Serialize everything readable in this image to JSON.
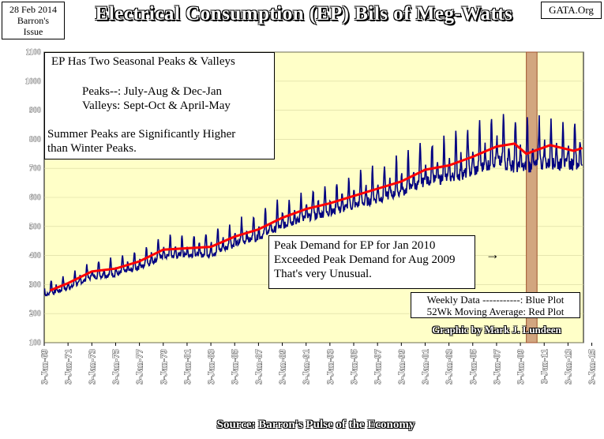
{
  "header": {
    "date_line1": "28 Feb 2014",
    "date_line2": "Barron's",
    "date_line3": "Issue",
    "site": "GATA.Org"
  },
  "colors": {
    "plot_background": "#ffffc8",
    "weekly_line": "#000080",
    "moving_average": "#ff0000",
    "highlight_fill": "#d2a67f",
    "highlight_border": "#a0522d"
  },
  "annotations": {
    "seasonal_title": "EP Has Two Seasonal Peaks & Valleys",
    "peaks": "Peaks--:  July-Aug & Dec-Jan",
    "valleys": "Valleys:  Sept-Oct & April-May",
    "summer_line1": "Summer Peaks are Significantly  Higher",
    "summer_line2": "than Winter Peaks.",
    "peak_line1": "Peak Demand for EP for Jan 2010",
    "peak_line2": "Exceeded Peak Demand for Aug 2009",
    "peak_line3": "That's very Unusual.",
    "arrow": "→",
    "legend_line1": "Weekly Data -----------: Blue Plot",
    "legend_line2": "52Wk Moving Average: Red Plot",
    "credit": "Graphic by Mark J. Lundeen"
  },
  "chart_data": {
    "type": "line",
    "title": "Electrical Consumption (EP) Bils of Meg-Watts",
    "xlabel": "Source: Barron's Pulse of the Economy",
    "ylabel": "",
    "ylim": [
      100,
      1100
    ],
    "yticks": [
      100,
      200,
      300,
      400,
      500,
      600,
      700,
      800,
      900,
      1000,
      1100
    ],
    "xlim": [
      1969.0,
      2014.3
    ],
    "xticks": [
      {
        "year": 1969,
        "label": "3-Jan-69"
      },
      {
        "year": 1971,
        "label": "3-Jan-71"
      },
      {
        "year": 1973,
        "label": "3-Jan-73"
      },
      {
        "year": 1975,
        "label": "3-Jan-75"
      },
      {
        "year": 1977,
        "label": "3-Jan-77"
      },
      {
        "year": 1979,
        "label": "3-Jan-79"
      },
      {
        "year": 1981,
        "label": "3-Jan-81"
      },
      {
        "year": 1983,
        "label": "3-Jan-83"
      },
      {
        "year": 1985,
        "label": "3-Jan-85"
      },
      {
        "year": 1987,
        "label": "3-Jan-87"
      },
      {
        "year": 1989,
        "label": "3-Jan-89"
      },
      {
        "year": 1991,
        "label": "3-Jan-91"
      },
      {
        "year": 1993,
        "label": "3-Jan-93"
      },
      {
        "year": 1995,
        "label": "3-Jan-95"
      },
      {
        "year": 1997,
        "label": "3-Jan-97"
      },
      {
        "year": 1999,
        "label": "3-Jan-99"
      },
      {
        "year": 2001,
        "label": "3-Jan-01"
      },
      {
        "year": 2003,
        "label": "3-Jan-03"
      },
      {
        "year": 2005,
        "label": "3-Jan-05"
      },
      {
        "year": 2007,
        "label": "3-Jan-07"
      },
      {
        "year": 2009,
        "label": "3-Jan-09"
      },
      {
        "year": 2011,
        "label": "3-Jan-11"
      },
      {
        "year": 2013,
        "label": "3-Jan-13"
      },
      {
        "year": 2015,
        "label": "3-Jan-15"
      }
    ],
    "highlight_range": [
      2009.5,
      2010.4
    ],
    "series": [
      {
        "name": "Weekly Data (Blue Plot)",
        "style": "seasonal",
        "trend_x": [
          1969,
          1971,
          1973,
          1975,
          1977,
          1979,
          1981,
          1983,
          1985,
          1987,
          1989,
          1991,
          1993,
          1995,
          1997,
          1999,
          2001,
          2003,
          2005,
          2007,
          2009,
          2011,
          2013,
          2014.2
        ],
        "trend_y": [
          275,
          300,
          340,
          350,
          375,
          415,
          420,
          425,
          460,
          485,
          525,
          555,
          575,
          600,
          625,
          650,
          690,
          705,
          730,
          770,
          745,
          760,
          755,
          760
        ],
        "amplitude_x": [
          1969,
          1980,
          1990,
          2000,
          2008,
          2014.2
        ],
        "amplitude_y": [
          35,
          55,
          70,
          95,
          130,
          120
        ]
      },
      {
        "name": "52Wk Moving Average (Red Plot)",
        "x": [
          1969.5,
          1971,
          1973,
          1975,
          1977,
          1979,
          1981,
          1983,
          1985,
          1987,
          1989,
          1991,
          1993,
          1995,
          1997,
          1999,
          2001,
          2003,
          2005,
          2007,
          2008.5,
          2009.5,
          2010.5,
          2011.5,
          2012.5,
          2013.5,
          2014.2
        ],
        "y": [
          280,
          305,
          345,
          355,
          380,
          420,
          425,
          430,
          465,
          490,
          530,
          560,
          580,
          605,
          630,
          655,
          695,
          710,
          740,
          775,
          785,
          750,
          765,
          780,
          770,
          760,
          770
        ]
      }
    ]
  },
  "footer": {
    "source": "Source: Barron's Pulse of the Economy"
  }
}
